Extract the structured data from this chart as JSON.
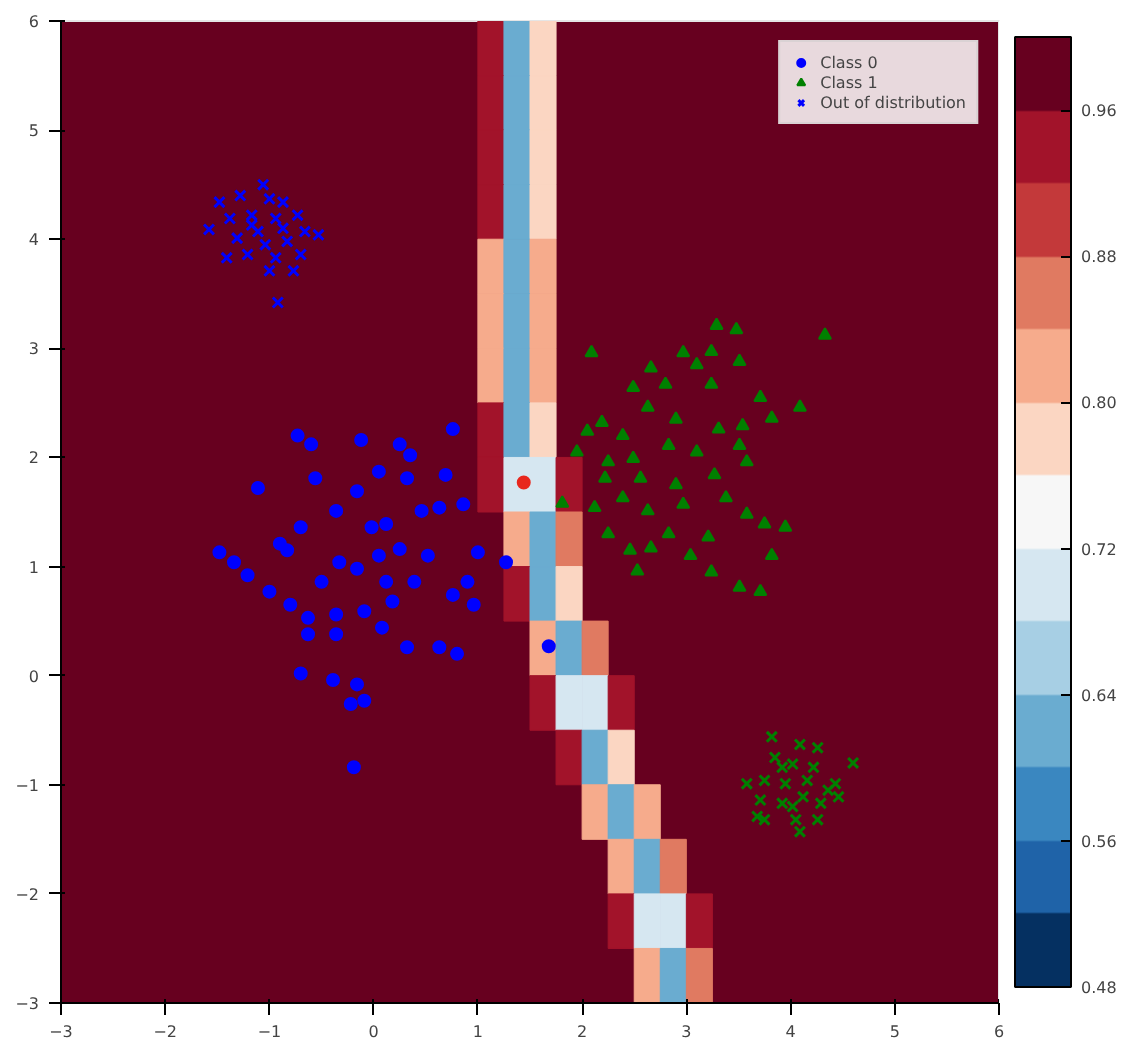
{
  "chart_data": {
    "type": "scatter",
    "xlim": [
      -3,
      6
    ],
    "ylim": [
      -3,
      6
    ],
    "xticks": [
      -3,
      -2,
      -1,
      0,
      1,
      2,
      3,
      4,
      5,
      6
    ],
    "yticks": [
      -3,
      -2,
      -1,
      0,
      1,
      2,
      3,
      4,
      5,
      6
    ],
    "clim": [
      0.48,
      1.0
    ],
    "cticks": [
      {
        "value": 0.48,
        "label": "0.48"
      },
      {
        "value": 0.56,
        "label": "0.56"
      },
      {
        "value": 0.64,
        "label": "0.64"
      },
      {
        "value": 0.72,
        "label": "0.72"
      },
      {
        "value": 0.8,
        "label": "0.80"
      },
      {
        "value": 0.88,
        "label": "0.88"
      },
      {
        "value": 0.96,
        "label": "0.96"
      }
    ],
    "legend": "top right",
    "series": [
      {
        "marker": "square",
        "x": [
          1.125,
          1.375,
          1.625,
          1.125,
          1.375,
          1.625,
          1.125,
          1.375,
          1.625,
          1.125,
          1.375,
          1.625,
          1.125,
          1.375,
          1.625,
          1.125,
          1.375,
          1.625,
          1.125,
          1.375,
          1.625,
          1.125,
          1.375,
          1.625,
          1.125,
          1.375,
          1.625,
          1.875,
          1.375,
          1.625,
          1.875,
          1.375,
          1.625,
          1.875,
          1.625,
          1.875,
          2.125,
          1.625,
          1.875,
          2.125,
          2.375,
          1.875,
          2.125,
          2.375,
          2.125,
          2.375,
          2.625,
          2.375,
          2.625,
          2.875,
          2.375,
          2.625,
          2.875,
          3.125,
          2.625,
          2.875,
          3.125
        ],
        "values": [
          5.75,
          5.75,
          5.75,
          5.25,
          5.25,
          5.25,
          4.75,
          4.75,
          4.75,
          4.25,
          4.25,
          4.25,
          3.75,
          3.75,
          3.75,
          3.25,
          3.25,
          3.25,
          2.75,
          2.75,
          2.75,
          2.25,
          2.25,
          2.25,
          1.75,
          1.75,
          1.75,
          1.75,
          1.25,
          1.25,
          1.25,
          0.75,
          0.75,
          0.75,
          0.25,
          0.25,
          0.25,
          -0.25,
          -0.25,
          -0.25,
          -0.25,
          -0.75,
          -0.75,
          -0.75,
          -1.25,
          -1.25,
          -1.25,
          -1.75,
          -1.75,
          -1.75,
          -2.25,
          -2.25,
          -2.25,
          -2.25,
          -2.75,
          -2.75,
          -2.75
        ],
        "cvalues": [
          0.94,
          0.62,
          0.78,
          0.94,
          0.62,
          0.78,
          0.94,
          0.62,
          0.78,
          0.94,
          0.62,
          0.78,
          0.82,
          0.62,
          0.82,
          0.82,
          0.62,
          0.82,
          0.82,
          0.62,
          0.82,
          0.94,
          0.62,
          0.78,
          0.94,
          0.7,
          0.7,
          0.94,
          0.82,
          0.62,
          0.86,
          0.94,
          0.62,
          0.78,
          0.82,
          0.62,
          0.86,
          0.94,
          0.7,
          0.7,
          0.94,
          0.94,
          0.62,
          0.78,
          0.82,
          0.62,
          0.82,
          0.82,
          0.62,
          0.86,
          0.94,
          0.7,
          0.7,
          0.94,
          0.82,
          0.62,
          0.86
        ],
        "colors": [
          "#a2132a",
          "#6aacd0",
          "#fbd6c2",
          "#a2132a",
          "#6aacd0",
          "#fbd6c2",
          "#a2132a",
          "#6aacd0",
          "#fbd6c2",
          "#a2132a",
          "#6aacd0",
          "#fbd6c2",
          "#f6ab8c",
          "#6aacd0",
          "#f6ab8c",
          "#f6ab8c",
          "#6aacd0",
          "#f6ab8c",
          "#f6ab8c",
          "#6aacd0",
          "#f6ab8c",
          "#a2132a",
          "#6aacd0",
          "#fbd6c2",
          "#a2132a",
          "#d6e7f1",
          "#d6e7f1",
          "#a2132a",
          "#f6ab8c",
          "#6aacd0",
          "#e07a61",
          "#a2132a",
          "#6aacd0",
          "#fbd6c2",
          "#f6ab8c",
          "#6aacd0",
          "#e07a61",
          "#a2132a",
          "#d6e7f1",
          "#d6e7f1",
          "#a2132a",
          "#a2132a",
          "#6aacd0",
          "#fbd6c2",
          "#f6ab8c",
          "#6aacd0",
          "#f6ab8c",
          "#f6ab8c",
          "#6aacd0",
          "#e07a61",
          "#a2132a",
          "#d6e7f1",
          "#d6e7f1",
          "#a2132a",
          "#f6ab8c",
          "#6aacd0",
          "#e07a61"
        ]
      },
      {
        "name": "Class 0",
        "color": "#0000ff",
        "marker": "circle",
        "x": [
          -0.73,
          -0.6,
          -0.12,
          0.25,
          0.76,
          -1.11,
          -0.56,
          0.35,
          0.69,
          0.86,
          -1.48,
          -1.34,
          -1.21,
          -0.83,
          -0.7,
          -0.36,
          -0.02,
          0.12,
          0.46,
          0.63,
          1.0,
          1.27,
          0.9,
          0.76,
          0.96,
          -1.0,
          -0.8,
          -0.63,
          -0.36,
          -0.09,
          0.18,
          0.39,
          0.32,
          0.63,
          0.8,
          -0.7,
          -0.39,
          -0.16,
          -0.22,
          -0.09,
          -0.19,
          1.68,
          0.05,
          -0.16,
          -0.33,
          -0.5,
          0.12,
          0.25,
          -0.63,
          -0.36,
          0.08,
          0.52,
          -0.9,
          0.32,
          -0.16,
          0.05
        ],
        "values": [
          2.2,
          2.12,
          2.16,
          2.12,
          2.26,
          1.72,
          1.81,
          2.02,
          1.84,
          1.57,
          1.13,
          1.04,
          0.92,
          1.15,
          1.36,
          1.51,
          1.36,
          1.39,
          1.51,
          1.54,
          1.13,
          1.04,
          0.86,
          0.74,
          0.65,
          0.77,
          0.65,
          0.53,
          0.56,
          0.59,
          0.68,
          0.86,
          0.26,
          0.26,
          0.2,
          0.02,
          -0.04,
          -0.08,
          -0.26,
          -0.23,
          -0.84,
          0.27,
          1.1,
          0.98,
          1.04,
          0.86,
          0.86,
          1.16,
          0.38,
          0.38,
          0.44,
          1.1,
          1.21,
          1.81,
          1.69,
          1.87
        ]
      },
      {
        "name": "Class 1",
        "color": "#008000",
        "marker": "triangle",
        "x": [
          3.29,
          3.48,
          4.33,
          2.09,
          2.97,
          3.24,
          2.66,
          3.1,
          3.51,
          2.49,
          2.8,
          3.24,
          3.71,
          4.09,
          3.82,
          2.05,
          2.19,
          2.39,
          2.63,
          2.9,
          3.31,
          3.54,
          1.95,
          2.25,
          2.49,
          2.83,
          3.1,
          3.51,
          2.22,
          2.56,
          2.9,
          3.27,
          3.58,
          1.81,
          2.12,
          2.39,
          2.63,
          2.97,
          3.38,
          3.58,
          3.75,
          3.95,
          2.25,
          2.83,
          3.21,
          2.46,
          2.66,
          3.04,
          3.82,
          2.53,
          3.24,
          3.51,
          3.71
        ],
        "values": [
          3.21,
          3.17,
          3.12,
          2.96,
          2.96,
          2.97,
          2.82,
          2.85,
          2.88,
          2.64,
          2.67,
          2.67,
          2.55,
          2.46,
          2.36,
          2.24,
          2.32,
          2.2,
          2.46,
          2.35,
          2.26,
          2.29,
          2.05,
          1.96,
          1.99,
          2.11,
          2.05,
          2.11,
          1.81,
          1.81,
          1.75,
          1.84,
          1.96,
          1.58,
          1.54,
          1.63,
          1.51,
          1.57,
          1.63,
          1.48,
          1.39,
          1.36,
          1.3,
          1.3,
          1.27,
          1.15,
          1.17,
          1.1,
          1.1,
          0.96,
          0.95,
          0.81,
          0.77
        ]
      },
      {
        "name": "Out of distribution",
        "color": "#0000ff",
        "marker": "cross",
        "x": [
          -1.06,
          -1.48,
          -1.28,
          -1.0,
          -0.87,
          -1.58,
          -1.38,
          -1.17,
          -0.94,
          -0.73,
          -0.66,
          -0.53,
          -1.31,
          -1.11,
          -1.04,
          -0.83,
          -1.41,
          -1.21,
          -0.94,
          -0.7,
          -1.0,
          -0.77,
          -0.92,
          -1.17,
          -0.87
        ],
        "values": [
          4.5,
          4.34,
          4.4,
          4.37,
          4.34,
          4.09,
          4.19,
          4.22,
          4.19,
          4.22,
          4.07,
          4.04,
          4.01,
          4.07,
          3.95,
          3.98,
          3.83,
          3.86,
          3.83,
          3.86,
          3.71,
          3.71,
          3.42,
          4.13,
          4.1
        ]
      },
      {
        "color": "#008000",
        "marker": "cross",
        "x": [
          3.82,
          4.09,
          4.26,
          4.6,
          3.85,
          4.02,
          4.22,
          3.58,
          3.75,
          3.95,
          4.16,
          4.36,
          4.43,
          3.71,
          3.92,
          4.12,
          4.29,
          4.46,
          3.75,
          4.05,
          4.26,
          4.09,
          3.68,
          3.92,
          4.02
        ],
        "values": [
          -0.56,
          -0.63,
          -0.66,
          -0.8,
          -0.75,
          -0.81,
          -0.84,
          -0.99,
          -0.96,
          -0.99,
          -0.96,
          -1.05,
          -0.99,
          -1.14,
          -1.17,
          -1.11,
          -1.17,
          -1.11,
          -1.32,
          -1.32,
          -1.32,
          -1.43,
          -1.29,
          -0.84,
          -1.2
        ]
      },
      {
        "color": "#e8281e",
        "marker": "circle",
        "x": [
          1.44
        ],
        "values": [
          1.77
        ]
      }
    ]
  }
}
